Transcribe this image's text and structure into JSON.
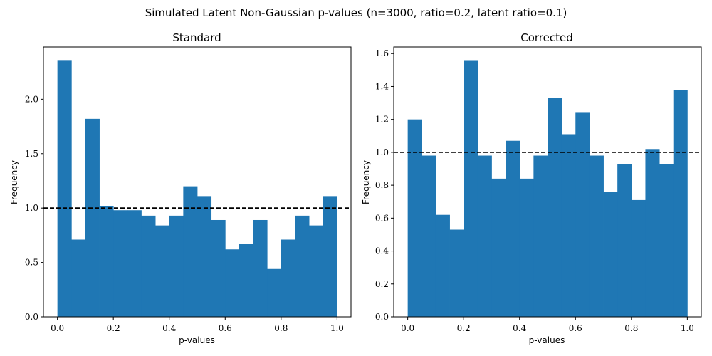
{
  "figure": {
    "title": "Simulated Latent Non-Gaussian p-values (n=3000, ratio=0.2, latent ratio=0.1)",
    "bar_color": "#1f77b4",
    "reference_line_color": "#000000"
  },
  "chart_data": [
    {
      "type": "bar",
      "title": "Standard",
      "xlabel": "p-values",
      "ylabel": "Frequency",
      "bin_edges": [
        0.0,
        0.05,
        0.1,
        0.15,
        0.2,
        0.25,
        0.3,
        0.35,
        0.4,
        0.45,
        0.5,
        0.55,
        0.6,
        0.65,
        0.7,
        0.75,
        0.8,
        0.85,
        0.9,
        0.95,
        1.0
      ],
      "values": [
        2.36,
        0.71,
        1.82,
        1.02,
        0.98,
        0.98,
        0.93,
        0.84,
        0.93,
        1.2,
        1.11,
        0.89,
        0.62,
        0.67,
        0.89,
        0.44,
        0.71,
        0.93,
        0.84,
        1.11
      ],
      "reference_line": {
        "y": 1.0,
        "style": "dashed"
      },
      "xlim": [
        -0.05,
        1.05
      ],
      "ylim": [
        0,
        2.48
      ],
      "xticks": [
        0.0,
        0.2,
        0.4,
        0.6,
        0.8,
        1.0
      ],
      "xtick_labels": [
        "0.0",
        "0.2",
        "0.4",
        "0.6",
        "0.8",
        "1.0"
      ],
      "yticks": [
        0.0,
        0.5,
        1.0,
        1.5,
        2.0
      ],
      "ytick_labels": [
        "0.0",
        "0.5",
        "1.0",
        "1.5",
        "2.0"
      ],
      "grid": false,
      "legend": "none"
    },
    {
      "type": "bar",
      "title": "Corrected",
      "xlabel": "p-values",
      "ylabel": "Frequency",
      "bin_edges": [
        0.0,
        0.05,
        0.1,
        0.15,
        0.2,
        0.25,
        0.3,
        0.35,
        0.4,
        0.45,
        0.5,
        0.55,
        0.6,
        0.65,
        0.7,
        0.75,
        0.8,
        0.85,
        0.9,
        0.95,
        1.0
      ],
      "values": [
        1.2,
        0.98,
        0.62,
        0.53,
        1.56,
        0.98,
        0.84,
        1.07,
        0.84,
        0.98,
        1.33,
        1.11,
        1.24,
        0.98,
        0.76,
        0.93,
        0.71,
        1.02,
        0.93,
        1.38
      ],
      "reference_line": {
        "y": 1.0,
        "style": "dashed"
      },
      "xlim": [
        -0.05,
        1.05
      ],
      "ylim": [
        0,
        1.64
      ],
      "xticks": [
        0.0,
        0.2,
        0.4,
        0.6,
        0.8,
        1.0
      ],
      "xtick_labels": [
        "0.0",
        "0.2",
        "0.4",
        "0.6",
        "0.8",
        "1.0"
      ],
      "yticks": [
        0.0,
        0.2,
        0.4,
        0.6,
        0.8,
        1.0,
        1.2,
        1.4,
        1.6
      ],
      "ytick_labels": [
        "0.0",
        "0.2",
        "0.4",
        "0.6",
        "0.8",
        "1.0",
        "1.2",
        "1.4",
        "1.6"
      ],
      "grid": false,
      "legend": "none"
    }
  ]
}
